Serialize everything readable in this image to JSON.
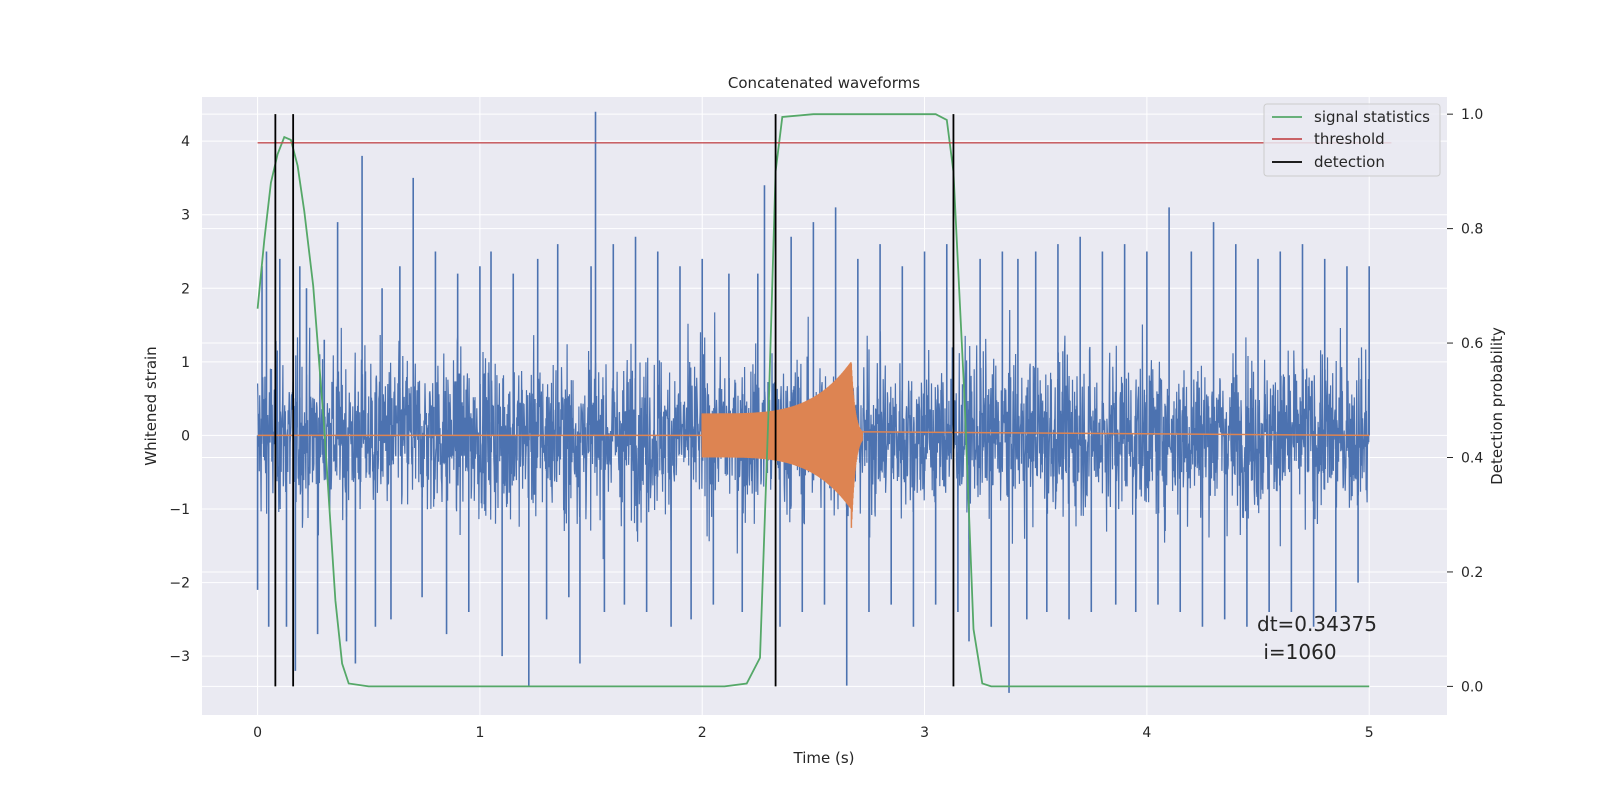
{
  "chart_data": {
    "type": "line",
    "title": "Concatenated waveforms",
    "xlabel": "Time (s)",
    "ylabel_left": "Whitened strain",
    "ylabel_right": "Detection probability",
    "xlim": [
      -0.25,
      5.35
    ],
    "ylim_left": [
      -3.8,
      4.6
    ],
    "ylim_right": [
      -0.05,
      1.03
    ],
    "x_ticks": [
      0,
      1,
      2,
      3,
      4,
      5
    ],
    "y_ticks_left": [
      -3,
      -2,
      -1,
      0,
      1,
      2,
      3,
      4
    ],
    "y_ticks_right": [
      0.0,
      0.2,
      0.4,
      0.6,
      0.8,
      1.0
    ],
    "x_tick_labels": [
      "0",
      "1",
      "2",
      "3",
      "4",
      "5"
    ],
    "y_tick_labels_left": [
      "−3",
      "−2",
      "−1",
      "0",
      "1",
      "2",
      "3",
      "4"
    ],
    "y_tick_labels_right": [
      "0.0",
      "0.2",
      "0.4",
      "0.6",
      "0.8",
      "1.0"
    ],
    "grid": true,
    "legend_position": "top-right",
    "legend": [
      {
        "label": "signal statistics",
        "color": "#55a868"
      },
      {
        "label": "threshold",
        "color": "#c44e52"
      },
      {
        "label": "detection",
        "color": "#000000"
      }
    ],
    "colors": {
      "strain": "#4c72b0",
      "injection": "#dd8452",
      "background": "#eaeaf2"
    },
    "series": [
      {
        "axis": "right",
        "style": "signal statistics",
        "points": [
          [
            0,
            0.66
          ],
          [
            0.03,
            0.78
          ],
          [
            0.06,
            0.88
          ],
          [
            0.09,
            0.93
          ],
          [
            0.12,
            0.96
          ],
          [
            0.15,
            0.955
          ],
          [
            0.18,
            0.91
          ],
          [
            0.21,
            0.83
          ],
          [
            0.25,
            0.7
          ],
          [
            0.3,
            0.45
          ],
          [
            0.35,
            0.15
          ],
          [
            0.38,
            0.04
          ],
          [
            0.41,
            0.005
          ],
          [
            0.5,
            0.0
          ],
          [
            2.1,
            0.0
          ],
          [
            2.2,
            0.005
          ],
          [
            2.26,
            0.05
          ],
          [
            2.3,
            0.5
          ],
          [
            2.33,
            0.9
          ],
          [
            2.36,
            0.995
          ],
          [
            2.5,
            1.0
          ],
          [
            3.05,
            1.0
          ],
          [
            3.1,
            0.99
          ],
          [
            3.13,
            0.9
          ],
          [
            3.18,
            0.5
          ],
          [
            3.22,
            0.1
          ],
          [
            3.26,
            0.005
          ],
          [
            3.3,
            0.0
          ],
          [
            5.0,
            0.0
          ]
        ]
      },
      {
        "axis": "right",
        "style": "threshold",
        "points": [
          [
            0,
            0.95
          ],
          [
            5.1,
            0.95
          ]
        ]
      }
    ],
    "noise_spikes": [
      [
        0.0,
        -2.1
      ],
      [
        0.02,
        2.3
      ],
      [
        0.04,
        2.5
      ],
      [
        0.05,
        -2.6
      ],
      [
        0.1,
        2.4
      ],
      [
        0.13,
        -2.6
      ],
      [
        0.17,
        -3.2
      ],
      [
        0.19,
        2.3
      ],
      [
        0.22,
        2.0
      ],
      [
        0.27,
        -2.7
      ],
      [
        0.3,
        1.3
      ],
      [
        0.36,
        2.9
      ],
      [
        0.4,
        -2.8
      ],
      [
        0.44,
        -3.1
      ],
      [
        0.47,
        3.8
      ],
      [
        0.53,
        -2.6
      ],
      [
        0.56,
        2.0
      ],
      [
        0.6,
        -2.5
      ],
      [
        0.64,
        2.3
      ],
      [
        0.7,
        3.5
      ],
      [
        0.74,
        -2.2
      ],
      [
        0.8,
        2.5
      ],
      [
        0.85,
        -2.7
      ],
      [
        0.9,
        2.2
      ],
      [
        0.95,
        -2.4
      ],
      [
        1.0,
        2.3
      ],
      [
        1.05,
        2.5
      ],
      [
        1.1,
        -3.0
      ],
      [
        1.15,
        2.2
      ],
      [
        1.22,
        -3.4
      ],
      [
        1.26,
        2.4
      ],
      [
        1.3,
        -2.5
      ],
      [
        1.35,
        2.6
      ],
      [
        1.4,
        -2.2
      ],
      [
        1.45,
        -3.1
      ],
      [
        1.5,
        2.3
      ],
      [
        1.52,
        4.4
      ],
      [
        1.56,
        -2.4
      ],
      [
        1.6,
        2.6
      ],
      [
        1.65,
        -2.3
      ],
      [
        1.7,
        2.7
      ],
      [
        1.75,
        -2.4
      ],
      [
        1.8,
        2.5
      ],
      [
        1.86,
        -2.6
      ],
      [
        1.9,
        2.3
      ],
      [
        1.95,
        -2.5
      ],
      [
        2.0,
        2.4
      ],
      [
        2.05,
        -2.3
      ],
      [
        2.12,
        2.2
      ],
      [
        2.18,
        -2.4
      ],
      [
        2.25,
        2.2
      ],
      [
        2.28,
        3.4
      ],
      [
        2.35,
        -2.6
      ],
      [
        2.4,
        2.7
      ],
      [
        2.45,
        -2.4
      ],
      [
        2.5,
        2.9
      ],
      [
        2.55,
        -2.3
      ],
      [
        2.6,
        3.1
      ],
      [
        2.65,
        -3.4
      ],
      [
        2.7,
        2.4
      ],
      [
        2.75,
        -2.4
      ],
      [
        2.8,
        2.6
      ],
      [
        2.85,
        -2.3
      ],
      [
        2.9,
        2.3
      ],
      [
        2.95,
        -2.6
      ],
      [
        3.0,
        2.5
      ],
      [
        3.05,
        -2.3
      ],
      [
        3.1,
        2.6
      ],
      [
        3.15,
        -2.4
      ],
      [
        3.2,
        -2.8
      ],
      [
        3.25,
        2.4
      ],
      [
        3.3,
        -2.6
      ],
      [
        3.35,
        2.5
      ],
      [
        3.38,
        -3.5
      ],
      [
        3.42,
        2.4
      ],
      [
        3.46,
        -2.5
      ],
      [
        3.5,
        2.5
      ],
      [
        3.55,
        -2.4
      ],
      [
        3.6,
        2.6
      ],
      [
        3.65,
        -2.5
      ],
      [
        3.7,
        2.7
      ],
      [
        3.75,
        -2.4
      ],
      [
        3.8,
        2.5
      ],
      [
        3.86,
        -2.3
      ],
      [
        3.9,
        2.6
      ],
      [
        3.95,
        -2.4
      ],
      [
        4.0,
        2.5
      ],
      [
        4.05,
        -2.3
      ],
      [
        4.1,
        3.1
      ],
      [
        4.15,
        -2.4
      ],
      [
        4.2,
        2.5
      ],
      [
        4.25,
        -2.6
      ],
      [
        4.3,
        2.9
      ],
      [
        4.35,
        -2.5
      ],
      [
        4.4,
        2.6
      ],
      [
        4.45,
        -2.6
      ],
      [
        4.5,
        2.4
      ],
      [
        4.55,
        -2.4
      ],
      [
        4.6,
        2.5
      ],
      [
        4.65,
        -2.4
      ],
      [
        4.7,
        2.6
      ],
      [
        4.75,
        -2.6
      ],
      [
        4.8,
        2.4
      ],
      [
        4.85,
        -2.4
      ],
      [
        4.9,
        2.3
      ],
      [
        4.95,
        -2.0
      ],
      [
        5.0,
        2.3
      ]
    ],
    "injection": {
      "start": 2.0,
      "merger": 2.67,
      "end": 2.72,
      "start_amplitude": 0.3,
      "peak_amplitude": 1.0
    },
    "detections_x": [
      0.08,
      0.16,
      2.33,
      3.13
    ],
    "annotation": {
      "line1": "dt=0.34375",
      "line2": " i=1060",
      "x": 4.5,
      "y": -2.7
    }
  }
}
